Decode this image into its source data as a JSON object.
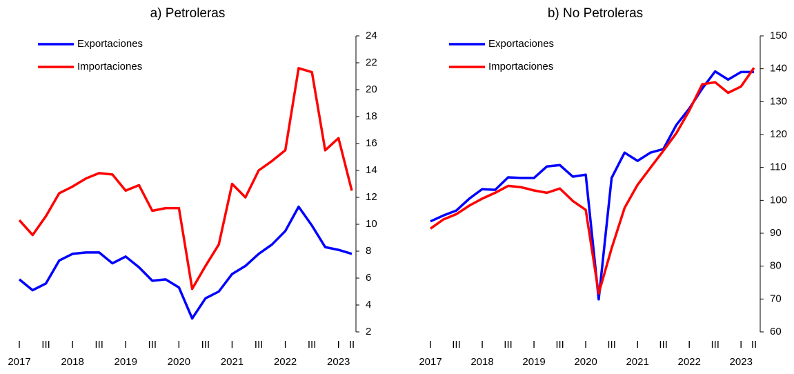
{
  "chart_data": [
    {
      "type": "line",
      "title": "a) Petroleras",
      "categories": [
        "I",
        null,
        "III",
        null,
        "I",
        null,
        "III",
        null,
        "I",
        null,
        "III",
        null,
        "I",
        null,
        "III",
        null,
        "I",
        null,
        "III",
        null,
        "I",
        null,
        "III",
        null,
        "I",
        "II"
      ],
      "category_groups": [
        "2017",
        "2018",
        "2019",
        "2020",
        "2021",
        "2022",
        "2023"
      ],
      "ylim": [
        2,
        24
      ],
      "yticks": [
        2,
        4,
        6,
        8,
        10,
        12,
        14,
        16,
        18,
        20,
        22,
        24
      ],
      "legend": "upper left",
      "series": [
        {
          "name": "Exportaciones",
          "color": "#0000ff",
          "values": [
            5.9,
            5.1,
            5.6,
            7.3,
            7.8,
            7.9,
            7.9,
            7.1,
            7.6,
            6.8,
            5.8,
            5.9,
            5.3,
            3.0,
            4.5,
            5.0,
            6.3,
            6.9,
            7.8,
            8.5,
            9.5,
            11.3,
            9.9,
            8.3,
            8.1,
            7.8
          ]
        },
        {
          "name": "Importaciones",
          "color": "#ff0000",
          "values": [
            10.3,
            9.2,
            10.6,
            12.3,
            12.8,
            13.4,
            13.8,
            13.7,
            12.5,
            12.9,
            11.0,
            11.2,
            11.2,
            5.2,
            6.9,
            8.5,
            13.0,
            12.0,
            14.0,
            14.7,
            15.5,
            21.6,
            21.3,
            15.5,
            16.4,
            12.5
          ]
        }
      ]
    },
    {
      "type": "line",
      "title": "b) No Petroleras",
      "categories": [
        "I",
        null,
        "III",
        null,
        "I",
        null,
        "III",
        null,
        "I",
        null,
        "III",
        null,
        "I",
        null,
        "III",
        null,
        "I",
        null,
        "III",
        null,
        "I",
        null,
        "III",
        null,
        "I",
        "II"
      ],
      "category_groups": [
        "2017",
        "2018",
        "2019",
        "2020",
        "2021",
        "2022",
        "2023"
      ],
      "ylim": [
        60,
        150
      ],
      "yticks": [
        60,
        70,
        80,
        90,
        100,
        110,
        120,
        130,
        140,
        150
      ],
      "legend": "upper left",
      "series": [
        {
          "name": "Exportaciones",
          "color": "#0000ff",
          "values": [
            93.6,
            95.4,
            96.9,
            100.5,
            103.4,
            103.2,
            107.0,
            106.8,
            106.8,
            110.3,
            110.7,
            107.2,
            107.8,
            69.9,
            106.8,
            114.5,
            112.0,
            114.5,
            115.6,
            122.9,
            127.9,
            134.0,
            139.2,
            136.7,
            139.0,
            139.0
          ]
        },
        {
          "name": "Importaciones",
          "color": "#ff0000",
          "values": [
            91.4,
            94.2,
            95.8,
            98.4,
            100.5,
            102.3,
            104.4,
            104.0,
            103.0,
            102.3,
            103.6,
            99.8,
            97.1,
            71.7,
            85.4,
            97.7,
            104.7,
            109.9,
            115.1,
            120.4,
            127.3,
            135.3,
            135.9,
            132.7,
            134.6,
            140.3
          ]
        }
      ]
    }
  ]
}
